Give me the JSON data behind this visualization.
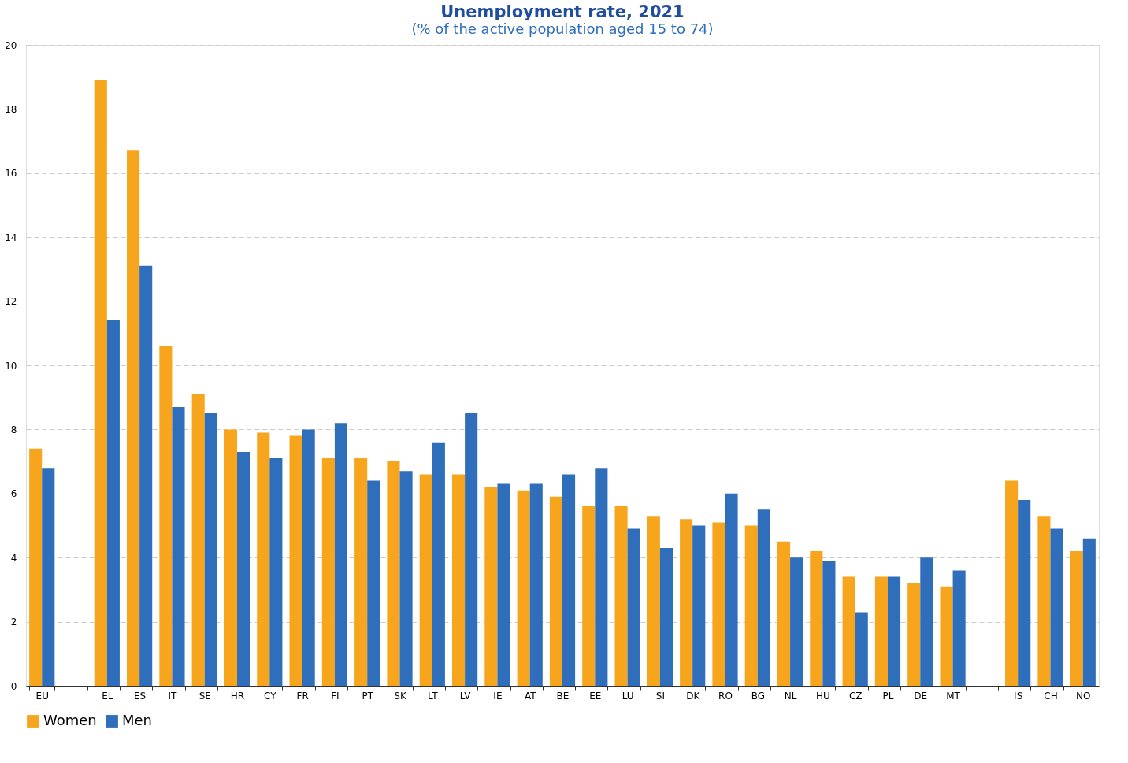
{
  "chart_data": {
    "type": "bar",
    "title": "Unemployment rate, 2021",
    "subtitle": "(% of the active population aged 15 to 74)",
    "categories": [
      "EU",
      null,
      "EL",
      "ES",
      "IT",
      "SE",
      "HR",
      "CY",
      "FR",
      "FI",
      "PT",
      "SK",
      "LT",
      "LV",
      "IE",
      "AT",
      "BE",
      "EE",
      "LU",
      "SI",
      "DK",
      "RO",
      "BG",
      "NL",
      "HU",
      "CZ",
      "PL",
      "DE",
      "MT",
      null,
      "IS",
      "CH",
      "NO"
    ],
    "series": [
      {
        "name": "Women",
        "color": "#f7a51c",
        "values": [
          7.4,
          null,
          18.9,
          16.7,
          10.6,
          9.1,
          8.0,
          7.9,
          7.8,
          7.1,
          7.1,
          7.0,
          6.6,
          6.6,
          6.2,
          6.1,
          5.9,
          5.6,
          5.6,
          5.3,
          5.2,
          5.1,
          5.0,
          4.5,
          4.2,
          3.4,
          3.4,
          3.2,
          3.1,
          null,
          6.4,
          5.3,
          4.2
        ]
      },
      {
        "name": "Men",
        "color": "#2f6eba",
        "values": [
          6.8,
          null,
          11.4,
          13.1,
          8.7,
          8.5,
          7.3,
          7.1,
          8.0,
          8.2,
          6.4,
          6.7,
          7.6,
          8.5,
          6.3,
          6.3,
          6.6,
          6.8,
          4.9,
          4.3,
          5.0,
          6.0,
          5.5,
          4.0,
          3.9,
          2.3,
          3.4,
          4.0,
          3.6,
          null,
          5.8,
          4.9,
          4.6
        ]
      }
    ],
    "ylim": [
      0,
      20
    ],
    "yticks": [
      0,
      2,
      4,
      6,
      8,
      10,
      12,
      14,
      16,
      18,
      20
    ],
    "grid": "y",
    "legend": "bottom"
  }
}
